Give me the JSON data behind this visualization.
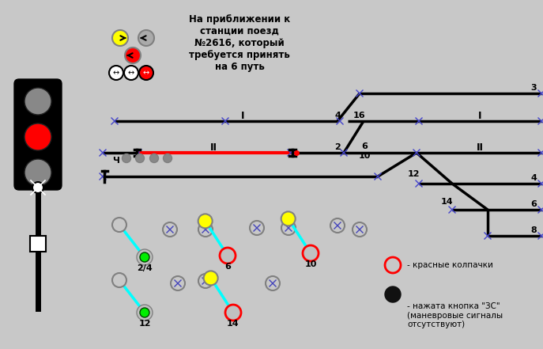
{
  "bg_color": "#c8c8c8",
  "title_text": "На приближении к\nстанции поезд\n№2616, который\nтребуется принять\nна 6 путь",
  "legend_red_circle_text": "- красные колпачки",
  "legend_black_dot_text": "- нажата кнопка \"ЗС\"\n(маневровые сигналы\nотсутствуют)"
}
